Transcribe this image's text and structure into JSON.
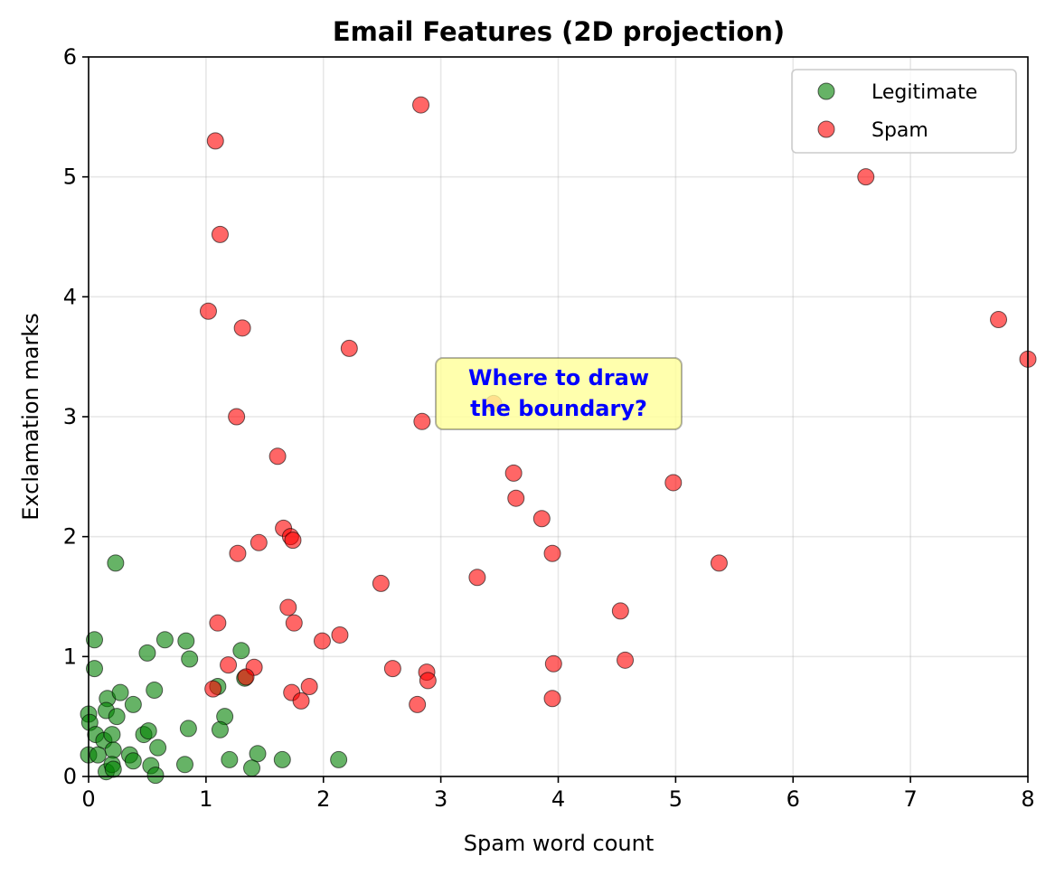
{
  "chart_data": {
    "type": "scatter",
    "title": "Email Features (2D projection)",
    "xlabel": "Spam word count",
    "ylabel": "Exclamation marks",
    "xlim": [
      0,
      8
    ],
    "ylim": [
      0,
      6
    ],
    "x_ticks": [
      "0",
      "1",
      "2",
      "3",
      "4",
      "5",
      "6",
      "7",
      "8"
    ],
    "y_ticks": [
      "0",
      "1",
      "2",
      "3",
      "4",
      "5",
      "6"
    ],
    "grid": true,
    "legend_position": "top-right",
    "series": [
      {
        "name": "Legitimate",
        "color": "#008000",
        "points": [
          [
            0.23,
            1.78
          ],
          [
            0.05,
            1.14
          ],
          [
            0.05,
            0.9
          ],
          [
            0.5,
            1.03
          ],
          [
            0.65,
            1.14
          ],
          [
            0.83,
            1.13
          ],
          [
            0.86,
            0.98
          ],
          [
            1.3,
            1.05
          ],
          [
            1.1,
            0.75
          ],
          [
            1.33,
            0.82
          ],
          [
            0.16,
            0.65
          ],
          [
            0.27,
            0.7
          ],
          [
            0.56,
            0.72
          ],
          [
            0.38,
            0.6
          ],
          [
            0.15,
            0.55
          ],
          [
            0.24,
            0.5
          ],
          [
            0.0,
            0.52
          ],
          [
            0.01,
            0.45
          ],
          [
            0.06,
            0.35
          ],
          [
            0.13,
            0.3
          ],
          [
            0.2,
            0.35
          ],
          [
            0.47,
            0.35
          ],
          [
            0.51,
            0.38
          ],
          [
            0.85,
            0.4
          ],
          [
            1.16,
            0.5
          ],
          [
            1.12,
            0.39
          ],
          [
            0.0,
            0.18
          ],
          [
            0.08,
            0.18
          ],
          [
            0.21,
            0.22
          ],
          [
            0.35,
            0.18
          ],
          [
            0.38,
            0.13
          ],
          [
            0.59,
            0.24
          ],
          [
            0.53,
            0.09
          ],
          [
            0.57,
            0.01
          ],
          [
            0.82,
            0.1
          ],
          [
            0.15,
            0.04
          ],
          [
            0.2,
            0.1
          ],
          [
            0.21,
            0.06
          ],
          [
            1.2,
            0.14
          ],
          [
            1.44,
            0.19
          ],
          [
            1.39,
            0.07
          ],
          [
            1.65,
            0.14
          ],
          [
            2.13,
            0.14
          ]
        ]
      },
      {
        "name": "Spam",
        "color": "#ff0000",
        "points": [
          [
            2.83,
            5.6
          ],
          [
            1.08,
            5.3
          ],
          [
            1.12,
            4.52
          ],
          [
            6.62,
            5.0
          ],
          [
            1.02,
            3.88
          ],
          [
            1.31,
            3.74
          ],
          [
            2.22,
            3.57
          ],
          [
            7.75,
            3.81
          ],
          [
            8.0,
            3.48
          ],
          [
            3.45,
            3.11
          ],
          [
            1.26,
            3.0
          ],
          [
            2.84,
            2.96
          ],
          [
            1.61,
            2.67
          ],
          [
            3.62,
            2.53
          ],
          [
            3.64,
            2.32
          ],
          [
            4.98,
            2.45
          ],
          [
            3.86,
            2.15
          ],
          [
            1.66,
            2.07
          ],
          [
            1.72,
            2.0
          ],
          [
            1.74,
            1.97
          ],
          [
            1.45,
            1.95
          ],
          [
            1.27,
            1.86
          ],
          [
            3.95,
            1.86
          ],
          [
            5.37,
            1.78
          ],
          [
            3.31,
            1.66
          ],
          [
            2.49,
            1.61
          ],
          [
            1.7,
            1.41
          ],
          [
            4.53,
            1.38
          ],
          [
            1.1,
            1.28
          ],
          [
            1.75,
            1.28
          ],
          [
            2.14,
            1.18
          ],
          [
            1.99,
            1.13
          ],
          [
            4.57,
            0.97
          ],
          [
            3.96,
            0.94
          ],
          [
            2.59,
            0.9
          ],
          [
            1.41,
            0.91
          ],
          [
            1.19,
            0.93
          ],
          [
            2.88,
            0.87
          ],
          [
            2.89,
            0.8
          ],
          [
            1.34,
            0.83
          ],
          [
            1.06,
            0.73
          ],
          [
            1.88,
            0.75
          ],
          [
            1.73,
            0.7
          ],
          [
            1.81,
            0.63
          ],
          [
            3.95,
            0.65
          ],
          [
            2.8,
            0.6
          ]
        ]
      }
    ],
    "annotations": [
      {
        "text_lines": [
          "Where to draw",
          "the boundary?"
        ],
        "x": 3.0,
        "y": 3.2,
        "text_color": "#0000ff",
        "box_color": "#ffff99"
      }
    ]
  }
}
